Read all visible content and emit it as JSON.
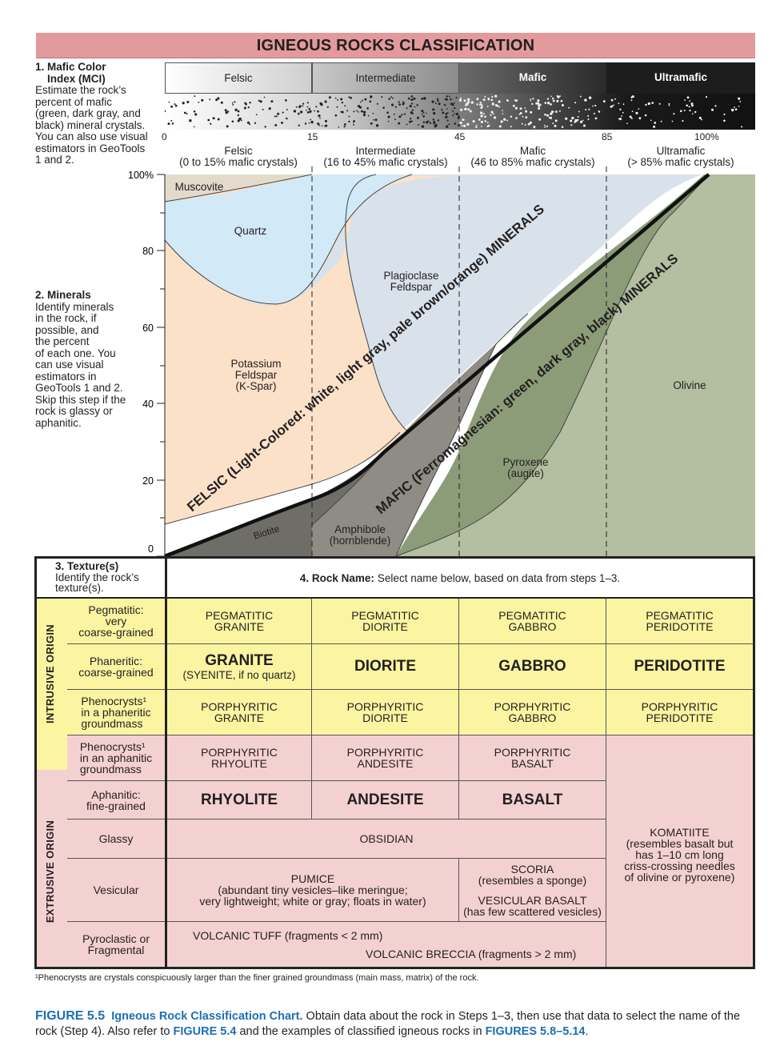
{
  "title": "IGNEOUS ROCKS CLASSIFICATION",
  "step1": {
    "heading": "1. Mafic Color",
    "heading2": "Index (MCI)",
    "lines": [
      "Estimate the rock’s",
      "percent of mafic",
      "(green, dark gray, and",
      "black) mineral crystals.",
      "You can also use visual",
      "estimators in GeoTools",
      "1 and 2."
    ]
  },
  "mci_bands": [
    "Felsic",
    "Intermediate",
    "Mafic",
    "Ultramafic"
  ],
  "mci_ticks": [
    "0",
    "15",
    "45",
    "85",
    "100%"
  ],
  "categories": [
    {
      "name": "Felsic",
      "range": "(0 to 15% mafic crystals)"
    },
    {
      "name": "Intermediate",
      "range": "(16 to 45% mafic crystals)"
    },
    {
      "name": "Mafic",
      "range": "(46 to 85% mafic crystals)"
    },
    {
      "name": "Ultramafic",
      "range": "(> 85% mafic crystals)"
    }
  ],
  "step2": {
    "heading": "2. Minerals",
    "lines": [
      "Identify minerals",
      "in the rock, if",
      "possible, and",
      "the percent",
      "of each one. You",
      "can use visual",
      "estimators in",
      "GeoTools 1 and 2.",
      "Skip this step if the",
      "rock is glassy or",
      "aphanitic."
    ]
  },
  "y_ticks": [
    "100%",
    "80",
    "60",
    "40",
    "20",
    "0"
  ],
  "minerals": {
    "muscovite": "Muscovite",
    "quartz": "Quartz",
    "plagioclase": [
      "Plagioclase",
      "Feldspar"
    ],
    "kspar": [
      "Potassium",
      "Feldspar",
      "(K-Spar)"
    ],
    "olivine": "Olivine",
    "pyroxene": [
      "Pyroxene",
      "(augite)"
    ],
    "amphibole": [
      "Amphibole",
      "(hornblende)"
    ],
    "biotite": "Biotite"
  },
  "felsic_label": "FELSIC (Light-Colored: white, light gray, pale brown/orange) MINERALS",
  "mafic_label": "MAFIC (Ferromagnesian: green, dark gray, black) MINERALS",
  "step3": {
    "heading": "3. Texture(s)",
    "lines": [
      "Identify the rock’s",
      "texture(s)."
    ]
  },
  "step4": {
    "heading": "4. Rock Name:",
    "text": "Select name below, based on data from steps 1–3."
  },
  "origins": {
    "intrusive": "INTRUSIVE ORIGIN",
    "extrusive": "EXTRUSIVE ORIGIN"
  },
  "textures": [
    [
      "Pegmatitic:",
      "very",
      "coarse-grained"
    ],
    [
      "Phaneritic:",
      "coarse-grained"
    ],
    [
      "Phenocrysts¹",
      "in a phaneritic",
      "groundmass"
    ],
    [
      "Phenocrysts¹",
      "in an aphanitic",
      "groundmass"
    ],
    [
      "Aphanitic:",
      "fine-grained"
    ],
    [
      "Glassy"
    ],
    [
      "Vesicular"
    ],
    [
      "Pyroclastic or",
      "Fragmental"
    ]
  ],
  "rocks": {
    "pegmatitic": [
      [
        "PEGMATITIC",
        "GRANITE"
      ],
      [
        "PEGMATITIC",
        "DIORITE"
      ],
      [
        "PEGMATITIC",
        "GABBRO"
      ],
      [
        "PEGMATITIC",
        "PERIDOTITE"
      ]
    ],
    "phaneritic": [
      "GRANITE",
      "DIORITE",
      "GABBRO",
      "PERIDOTITE"
    ],
    "syenite_note": "(SYENITE, if no quartz)",
    "porph_phaneritic": [
      [
        "PORPHYRITIC",
        "GRANITE"
      ],
      [
        "PORPHYRITIC",
        "DIORITE"
      ],
      [
        "PORPHYRITIC",
        "GABBRO"
      ],
      [
        "PORPHYRITIC",
        "PERIDOTITE"
      ]
    ],
    "porph_aphanitic": [
      [
        "PORPHYRITIC",
        "RHYOLITE"
      ],
      [
        "PORPHYRITIC",
        "ANDESITE"
      ],
      [
        "PORPHYRITIC",
        "BASALT"
      ]
    ],
    "aphanitic": [
      "RHYOLITE",
      "ANDESITE",
      "BASALT"
    ],
    "glassy": "OBSIDIAN",
    "pumice": [
      "PUMICE",
      "(abundant tiny vesicles–like meringue;",
      "very lightweight; white or gray; floats in water)"
    ],
    "scoria": [
      "SCORIA",
      "(resembles a sponge)"
    ],
    "vesicular_basalt": [
      "VESICULAR BASALT",
      "(has few scattered vesicles)"
    ],
    "tuff": "VOLCANIC TUFF (fragments < 2 mm)",
    "breccia": "VOLCANIC BRECCIA (fragments > 2 mm)",
    "komatiite": [
      "KOMATIITE",
      "(resembles basalt but",
      "has 1–10 cm long",
      "criss-crossing needles",
      "of olivine or pyroxene)"
    ]
  },
  "footnote": "¹Phenocrysts are crystals conspicuously larger than the finer grained groundmass (main mass, matrix) of the rock.",
  "caption": {
    "figure": "FIGURE 5.5",
    "title": "Igneous Rock Classification Chart.",
    "text1": " Obtain data about the rock in Steps 1–3, then use that data to select the name of the rock (Step 4). Also refer to ",
    "ref1": "FIGURE 5.4",
    "text2": " and the examples of classified igneous rocks in ",
    "ref2": "FIGURES 5.8–5.14",
    "text3": "."
  },
  "colors": {
    "title_bg": "#e29a9c",
    "yellow": "#fbf5a1",
    "pink": "#f4d1d1",
    "quartz": "#d2e9f7",
    "kspar": "#fbe1c8",
    "plagioclase": "#d9e2ea",
    "muscovite": "#e3dacb",
    "olivine": "#b4bea0",
    "pyroxene": "#8c9c78",
    "amphibole": "#8e8c84",
    "biotite": "#6f6d68"
  }
}
